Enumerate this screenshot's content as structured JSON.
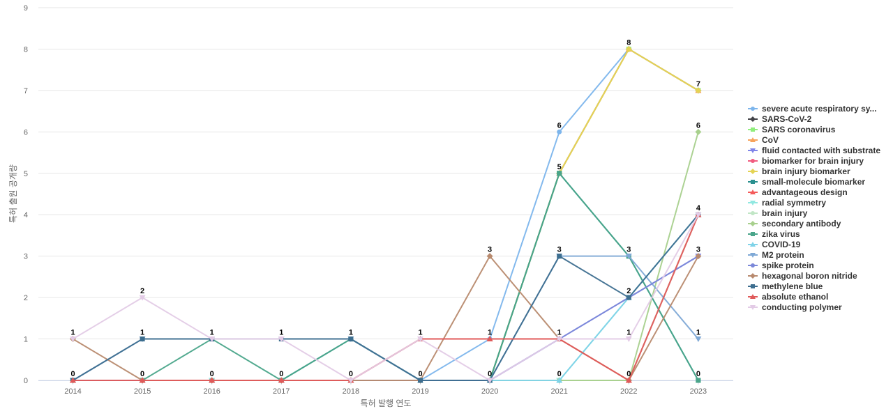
{
  "chart_data": {
    "type": "line",
    "xlabel": "특허 발행 연도",
    "ylabel": "특허 출원 공개량",
    "ylim": [
      0,
      9
    ],
    "yticks": [
      0,
      1,
      2,
      3,
      4,
      5,
      6,
      7,
      8,
      9
    ],
    "grid": true,
    "legend_position": "right",
    "categories": [
      "2014",
      "2015",
      "2016",
      "2017",
      "2018",
      "2019",
      "2020",
      "2021",
      "2022",
      "2023"
    ],
    "series": [
      {
        "name": "severe acute respiratory sy...",
        "color": "#7cb5ec",
        "marker": "circle",
        "values": [
          0,
          0,
          0,
          0,
          0,
          0,
          1,
          6,
          8,
          7
        ]
      },
      {
        "name": "SARS-CoV-2",
        "color": "#434348",
        "marker": "diamond",
        "values": [
          0,
          0,
          0,
          0,
          0,
          0,
          0,
          5,
          8,
          7
        ]
      },
      {
        "name": "SARS coronavirus",
        "color": "#90ed7d",
        "marker": "square",
        "values": [
          0,
          0,
          0,
          0,
          0,
          0,
          0,
          5,
          8,
          7
        ]
      },
      {
        "name": "CoV",
        "color": "#f7a35c",
        "marker": "triangle",
        "values": [
          0,
          0,
          0,
          0,
          0,
          0,
          0,
          5,
          8,
          7
        ]
      },
      {
        "name": "fluid contacted with substrate",
        "color": "#8085e9",
        "marker": "triangle-down",
        "values": [
          0,
          0,
          0,
          0,
          0,
          0,
          0,
          1,
          2,
          3
        ]
      },
      {
        "name": "biomarker for brain injury",
        "color": "#f15c80",
        "marker": "circle",
        "values": [
          0,
          0,
          0,
          0,
          0,
          0,
          0,
          0,
          0,
          4
        ]
      },
      {
        "name": "brain injury biomarker",
        "color": "#e4d354",
        "marker": "diamond",
        "values": [
          0,
          0,
          0,
          0,
          0,
          0,
          0,
          5,
          8,
          7
        ]
      },
      {
        "name": "small-molecule biomarker",
        "color": "#2b908f",
        "marker": "square",
        "values": [
          0,
          0,
          0,
          0,
          1,
          0,
          0,
          5,
          3,
          0
        ]
      },
      {
        "name": "advantageous design",
        "color": "#f45b5b",
        "marker": "triangle",
        "values": [
          0,
          0,
          0,
          0,
          0,
          1,
          1,
          1,
          0,
          4
        ]
      },
      {
        "name": "radial symmetry",
        "color": "#91e8e1",
        "marker": "triangle-down",
        "values": [
          0,
          0,
          0,
          0,
          0,
          0,
          0,
          0,
          2,
          4
        ]
      },
      {
        "name": "brain injury",
        "color": "#c1e6c6",
        "marker": "circle",
        "values": [
          0,
          0,
          0,
          0,
          0,
          0,
          0,
          0,
          0,
          4
        ]
      },
      {
        "name": "secondary antibody",
        "color": "#a8d08d",
        "marker": "diamond",
        "values": [
          0,
          0,
          0,
          0,
          0,
          0,
          0,
          0,
          0,
          6
        ]
      },
      {
        "name": "zika virus",
        "color": "#4aa58a",
        "marker": "square",
        "values": [
          0,
          0,
          1,
          0,
          1,
          0,
          0,
          5,
          3,
          0
        ]
      },
      {
        "name": "COVID-19",
        "color": "#7fd3e8",
        "marker": "triangle",
        "values": [
          0,
          0,
          0,
          0,
          0,
          0,
          0,
          0,
          2,
          4
        ]
      },
      {
        "name": "M2 protein",
        "color": "#7fa9d6",
        "marker": "triangle-down",
        "values": [
          0,
          1,
          1,
          1,
          1,
          0,
          0,
          3,
          3,
          1
        ]
      },
      {
        "name": "spike protein",
        "color": "#7b88d9",
        "marker": "circle",
        "values": [
          0,
          0,
          0,
          0,
          0,
          0,
          0,
          1,
          2,
          3
        ]
      },
      {
        "name": "hexagonal boron nitride",
        "color": "#b88a6e",
        "marker": "diamond",
        "values": [
          1,
          0,
          0,
          0,
          0,
          0,
          3,
          1,
          0,
          3
        ]
      },
      {
        "name": "methylene blue",
        "color": "#3d6e8f",
        "marker": "square",
        "values": [
          0,
          1,
          1,
          1,
          1,
          0,
          0,
          3,
          2,
          4
        ]
      },
      {
        "name": "absolute ethanol",
        "color": "#e05a5a",
        "marker": "triangle",
        "values": [
          0,
          0,
          0,
          0,
          0,
          1,
          1,
          1,
          0,
          4
        ]
      },
      {
        "name": "conducting polymer",
        "color": "#e3cbe6",
        "marker": "triangle-down",
        "values": [
          1,
          2,
          1,
          1,
          0,
          1,
          0,
          1,
          1,
          4
        ]
      }
    ],
    "data_labels": [
      {
        "x": "2014",
        "y": 1,
        "text": "1"
      },
      {
        "x": "2014",
        "y": 0,
        "text": "0"
      },
      {
        "x": "2015",
        "y": 2,
        "text": "2"
      },
      {
        "x": "2015",
        "y": 1,
        "text": "1"
      },
      {
        "x": "2015",
        "y": 0,
        "text": "0"
      },
      {
        "x": "2016",
        "y": 1,
        "text": "1"
      },
      {
        "x": "2016",
        "y": 0,
        "text": "0"
      },
      {
        "x": "2017",
        "y": 1,
        "text": "1"
      },
      {
        "x": "2017",
        "y": 0,
        "text": "0"
      },
      {
        "x": "2018",
        "y": 1,
        "text": "1"
      },
      {
        "x": "2018",
        "y": 0,
        "text": "0"
      },
      {
        "x": "2019",
        "y": 1,
        "text": "1"
      },
      {
        "x": "2019",
        "y": 0,
        "text": "0"
      },
      {
        "x": "2020",
        "y": 3,
        "text": "3"
      },
      {
        "x": "2020",
        "y": 1,
        "text": "1"
      },
      {
        "x": "2020",
        "y": 0,
        "text": "0"
      },
      {
        "x": "2021",
        "y": 6,
        "text": "6"
      },
      {
        "x": "2021",
        "y": 5,
        "text": "5"
      },
      {
        "x": "2021",
        "y": 3,
        "text": "3"
      },
      {
        "x": "2021",
        "y": 1,
        "text": "1"
      },
      {
        "x": "2021",
        "y": 0,
        "text": "0"
      },
      {
        "x": "2022",
        "y": 8,
        "text": "8"
      },
      {
        "x": "2022",
        "y": 3,
        "text": "3"
      },
      {
        "x": "2022",
        "y": 2,
        "text": "2"
      },
      {
        "x": "2022",
        "y": 1,
        "text": "1"
      },
      {
        "x": "2022",
        "y": 0,
        "text": "0"
      },
      {
        "x": "2023",
        "y": 7,
        "text": "7"
      },
      {
        "x": "2023",
        "y": 6,
        "text": "6"
      },
      {
        "x": "2023",
        "y": 4,
        "text": "4"
      },
      {
        "x": "2023",
        "y": 3,
        "text": "3"
      },
      {
        "x": "2023",
        "y": 1,
        "text": "1"
      },
      {
        "x": "2023",
        "y": 0,
        "text": "0"
      }
    ]
  }
}
